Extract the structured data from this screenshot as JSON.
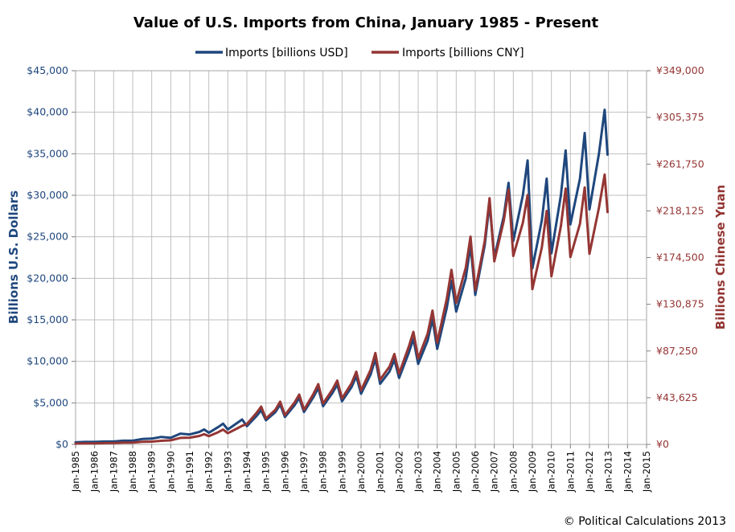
{
  "chart_data": {
    "type": "line",
    "title": "Value of U.S. Imports from China, January 1985 - Present",
    "ylabel": "Billions U.S. Dollars",
    "y2label": "Billions Chinese Yuan",
    "credit": "© Political Calculations 2013",
    "ylim": [
      0,
      45000
    ],
    "y2lim": [
      0,
      349000
    ],
    "xlim": [
      1985,
      2015
    ],
    "grid": true,
    "legend": "top-center",
    "y_ticks": [
      "$0",
      "$5,000",
      "$10,000",
      "$15,000",
      "$20,000",
      "$25,000",
      "$30,000",
      "$35,000",
      "$40,000",
      "$45,000"
    ],
    "y2_ticks": [
      "¥0",
      "¥43,625",
      "¥87,250",
      "¥130,875",
      "¥174,500",
      "¥218,125",
      "¥261,750",
      "¥305,375",
      "¥349,000"
    ],
    "x_ticks": [
      "Jan-1985",
      "Jan-1986",
      "Jan-1987",
      "Jan-1988",
      "Jan-1989",
      "Jan-1990",
      "Jan-1991",
      "Jan-1992",
      "Jan-1993",
      "Jan-1994",
      "Jan-1995",
      "Jan-1996",
      "Jan-1997",
      "Jan-1998",
      "Jan-1999",
      "Jan-2000",
      "Jan-2001",
      "Jan-2002",
      "Jan-2003",
      "Jan-2004",
      "Jan-2005",
      "Jan-2006",
      "Jan-2007",
      "Jan-2008",
      "Jan-2009",
      "Jan-2010",
      "Jan-2011",
      "Jan-2012",
      "Jan-2013",
      "Jan-2014",
      "Jan-2015"
    ],
    "series": [
      {
        "name": "Imports [billions USD]",
        "axis": "left",
        "color": "#1f477d",
        "points": [
          [
            1985.0,
            250
          ],
          [
            1985.5,
            300
          ],
          [
            1986.0,
            300
          ],
          [
            1986.5,
            350
          ],
          [
            1987.0,
            350
          ],
          [
            1987.5,
            450
          ],
          [
            1988.0,
            450
          ],
          [
            1988.5,
            650
          ],
          [
            1989.0,
            700
          ],
          [
            1989.5,
            900
          ],
          [
            1990.0,
            800
          ],
          [
            1990.5,
            1300
          ],
          [
            1991.0,
            1200
          ],
          [
            1991.5,
            1500
          ],
          [
            1991.75,
            1800
          ],
          [
            1992.0,
            1400
          ],
          [
            1992.5,
            2100
          ],
          [
            1992.75,
            2500
          ],
          [
            1993.0,
            1800
          ],
          [
            1993.5,
            2600
          ],
          [
            1993.75,
            3000
          ],
          [
            1994.0,
            2200
          ],
          [
            1994.5,
            3400
          ],
          [
            1994.75,
            4100
          ],
          [
            1995.0,
            2900
          ],
          [
            1995.5,
            3900
          ],
          [
            1995.75,
            4800
          ],
          [
            1996.0,
            3300
          ],
          [
            1996.5,
            4700
          ],
          [
            1996.75,
            5600
          ],
          [
            1997.0,
            3900
          ],
          [
            1997.5,
            5700
          ],
          [
            1997.75,
            6800
          ],
          [
            1998.0,
            4600
          ],
          [
            1998.5,
            6200
          ],
          [
            1998.75,
            7200
          ],
          [
            1999.0,
            5200
          ],
          [
            1999.5,
            6900
          ],
          [
            1999.75,
            8200
          ],
          [
            2000.0,
            6100
          ],
          [
            2000.5,
            8400
          ],
          [
            2000.75,
            10300
          ],
          [
            2001.0,
            7300
          ],
          [
            2001.5,
            8800
          ],
          [
            2001.75,
            10200
          ],
          [
            2002.0,
            8000
          ],
          [
            2002.5,
            11000
          ],
          [
            2002.75,
            12700
          ],
          [
            2003.0,
            9700
          ],
          [
            2003.5,
            12500
          ],
          [
            2003.75,
            15100
          ],
          [
            2004.0,
            11500
          ],
          [
            2004.5,
            16400
          ],
          [
            2004.75,
            19700
          ],
          [
            2005.0,
            16000
          ],
          [
            2005.5,
            20000
          ],
          [
            2005.75,
            24000
          ],
          [
            2006.0,
            18000
          ],
          [
            2006.5,
            24000
          ],
          [
            2006.75,
            29000
          ],
          [
            2007.0,
            22500
          ],
          [
            2007.5,
            27500
          ],
          [
            2007.75,
            31500
          ],
          [
            2008.0,
            24500
          ],
          [
            2008.5,
            30000
          ],
          [
            2008.75,
            34200
          ],
          [
            2009.0,
            21200
          ],
          [
            2009.5,
            27000
          ],
          [
            2009.75,
            32000
          ],
          [
            2010.0,
            23000
          ],
          [
            2010.5,
            30000
          ],
          [
            2010.75,
            35400
          ],
          [
            2011.0,
            26500
          ],
          [
            2011.5,
            32000
          ],
          [
            2011.75,
            37500
          ],
          [
            2012.0,
            28300
          ],
          [
            2012.5,
            35000
          ],
          [
            2012.8,
            40300
          ],
          [
            2012.95,
            34900
          ]
        ]
      },
      {
        "name": "Imports [billions CNY]",
        "axis": "right",
        "color": "#943634",
        "points": [
          [
            1985.0,
            750
          ],
          [
            1985.5,
            900
          ],
          [
            1986.0,
            1000
          ],
          [
            1986.5,
            1200
          ],
          [
            1987.0,
            1300
          ],
          [
            1987.5,
            1700
          ],
          [
            1988.0,
            1700
          ],
          [
            1988.5,
            2400
          ],
          [
            1989.0,
            2600
          ],
          [
            1989.5,
            3400
          ],
          [
            1990.0,
            3800
          ],
          [
            1990.5,
            6100
          ],
          [
            1991.0,
            6300
          ],
          [
            1991.5,
            7900
          ],
          [
            1991.75,
            9500
          ],
          [
            1992.0,
            7700
          ],
          [
            1992.5,
            11500
          ],
          [
            1992.75,
            13800
          ],
          [
            1993.0,
            10400
          ],
          [
            1993.5,
            15000
          ],
          [
            1993.75,
            17400
          ],
          [
            1994.0,
            19000
          ],
          [
            1994.5,
            29300
          ],
          [
            1994.75,
            35300
          ],
          [
            1995.0,
            24200
          ],
          [
            1995.5,
            32400
          ],
          [
            1995.75,
            39900
          ],
          [
            1996.0,
            27400
          ],
          [
            1996.5,
            39000
          ],
          [
            1996.75,
            46500
          ],
          [
            1997.0,
            32300
          ],
          [
            1997.5,
            47200
          ],
          [
            1997.75,
            56300
          ],
          [
            1998.0,
            38100
          ],
          [
            1998.5,
            51300
          ],
          [
            1998.75,
            59600
          ],
          [
            1999.0,
            43000
          ],
          [
            1999.5,
            57100
          ],
          [
            1999.75,
            67900
          ],
          [
            2000.0,
            50500
          ],
          [
            2000.5,
            69500
          ],
          [
            2000.75,
            85300
          ],
          [
            2001.0,
            60400
          ],
          [
            2001.5,
            72800
          ],
          [
            2001.75,
            84400
          ],
          [
            2002.0,
            66200
          ],
          [
            2002.5,
            91000
          ],
          [
            2002.75,
            105100
          ],
          [
            2003.0,
            80300
          ],
          [
            2003.5,
            103500
          ],
          [
            2003.75,
            125000
          ],
          [
            2004.0,
            95200
          ],
          [
            2004.5,
            135700
          ],
          [
            2004.75,
            163000
          ],
          [
            2005.0,
            132400
          ],
          [
            2005.5,
            165000
          ],
          [
            2005.75,
            194000
          ],
          [
            2006.0,
            144000
          ],
          [
            2006.5,
            190000
          ],
          [
            2006.75,
            230000
          ],
          [
            2007.0,
            171000
          ],
          [
            2007.5,
            209000
          ],
          [
            2007.75,
            238000
          ],
          [
            2008.0,
            176000
          ],
          [
            2008.5,
            207000
          ],
          [
            2008.75,
            233000
          ],
          [
            2009.0,
            145000
          ],
          [
            2009.5,
            184000
          ],
          [
            2009.75,
            218000
          ],
          [
            2010.0,
            157000
          ],
          [
            2010.5,
            204000
          ],
          [
            2010.75,
            239000
          ],
          [
            2011.0,
            175000
          ],
          [
            2011.5,
            206000
          ],
          [
            2011.75,
            240000
          ],
          [
            2012.0,
            178000
          ],
          [
            2012.5,
            221000
          ],
          [
            2012.8,
            252000
          ],
          [
            2012.95,
            217000
          ]
        ]
      }
    ]
  }
}
